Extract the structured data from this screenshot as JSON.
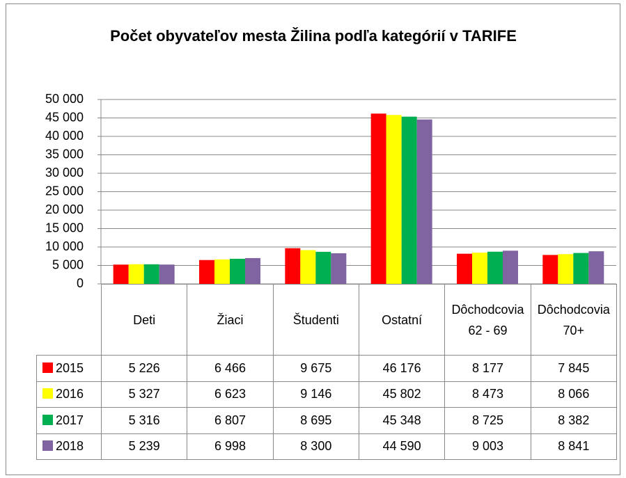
{
  "chart_data": {
    "type": "bar",
    "title": "Počet obyvateľov mesta Žilina podľa kategórií v TARIFE",
    "categories": [
      "Deti",
      "Žiaci",
      "Študenti",
      "Ostatní",
      "Dôchodcovia 62 - 69",
      "Dôchodcovia 70+"
    ],
    "series": [
      {
        "name": "2015",
        "color": "#ff0000",
        "values": [
          5226,
          6466,
          9675,
          46176,
          8177,
          7845
        ],
        "value_labels": [
          "5 226",
          "6 466",
          "9 675",
          "46 176",
          "8 177",
          "7 845"
        ]
      },
      {
        "name": "2016",
        "color": "#ffff00",
        "values": [
          5327,
          6623,
          9146,
          45802,
          8473,
          8066
        ],
        "value_labels": [
          "5 327",
          "6 623",
          "9 146",
          "45 802",
          "8 473",
          "8 066"
        ]
      },
      {
        "name": "2017",
        "color": "#00b050",
        "values": [
          5316,
          6807,
          8695,
          45348,
          8725,
          8382
        ],
        "value_labels": [
          "5 316",
          "6 807",
          "8 695",
          "45 348",
          "8 725",
          "8 382"
        ]
      },
      {
        "name": "2018",
        "color": "#8064a2",
        "values": [
          5239,
          6998,
          8300,
          44590,
          9003,
          8841
        ],
        "value_labels": [
          "5 239",
          "6 998",
          "8 300",
          "44 590",
          "9 003",
          "8 841"
        ]
      }
    ],
    "ylim": [
      0,
      50000
    ],
    "yticks": [
      0,
      {
        "value": 5000,
        "label": "5 000"
      },
      {
        "value": 10000,
        "label": "10 000"
      },
      {
        "value": 15000,
        "label": "15 000"
      },
      {
        "value": 20000,
        "label": "20 000"
      },
      {
        "value": 25000,
        "label": "25 000"
      },
      {
        "value": 30000,
        "label": "30 000"
      },
      {
        "value": 35000,
        "label": "35 000"
      },
      {
        "value": 40000,
        "label": "40 000"
      },
      {
        "value": 45000,
        "label": "45 000"
      },
      {
        "value": 50000,
        "label": "50 000"
      }
    ],
    "grid": true
  }
}
